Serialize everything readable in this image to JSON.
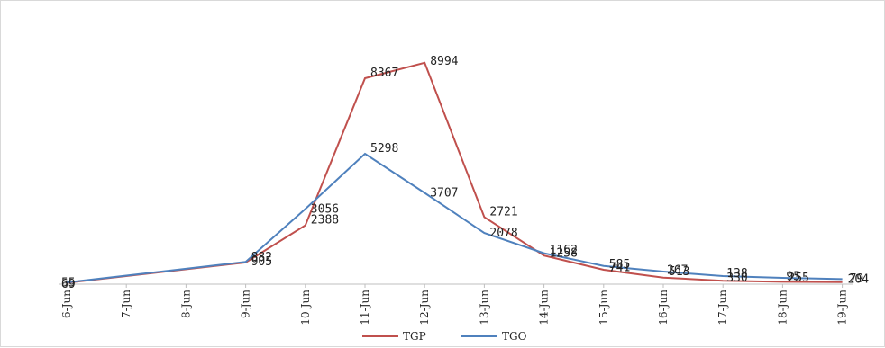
{
  "chart_data": {
    "type": "line",
    "title": "",
    "xlabel": "",
    "ylabel": "",
    "categories": [
      "6-Jun",
      "7-Jun",
      "8-Jun",
      "9-Jun",
      "10-Jun",
      "11-Jun",
      "12-Jun",
      "13-Jun",
      "14-Jun",
      "15-Jun",
      "16-Jun",
      "17-Jun",
      "18-Jun",
      "19-Jun"
    ],
    "series": [
      {
        "name": "TGP",
        "color": "#c0504d",
        "values": [
          55,
          null,
          null,
          882,
          2388,
          8367,
          8994,
          2721,
          1162,
          585,
          267,
          138,
          95,
          79
        ],
        "labels": [
          "55",
          "",
          "",
          "882",
          "2388",
          "8367",
          "8994",
          "2721",
          "1162",
          "585",
          "267",
          "138",
          "95",
          "79"
        ]
      },
      {
        "name": "TGO",
        "color": "#4f81bd",
        "values": [
          69,
          null,
          null,
          905,
          3056,
          5298,
          3707,
          2078,
          1258,
          741,
          513,
          330,
          255,
          204
        ],
        "labels": [
          "69",
          "",
          "",
          "905",
          "3056",
          "5298",
          "3707",
          "2078",
          "1258",
          "741",
          "513",
          "330",
          "255",
          "204"
        ]
      }
    ],
    "ylim": [
      0,
      9500
    ],
    "grid": false,
    "legend_position": "bottom"
  }
}
